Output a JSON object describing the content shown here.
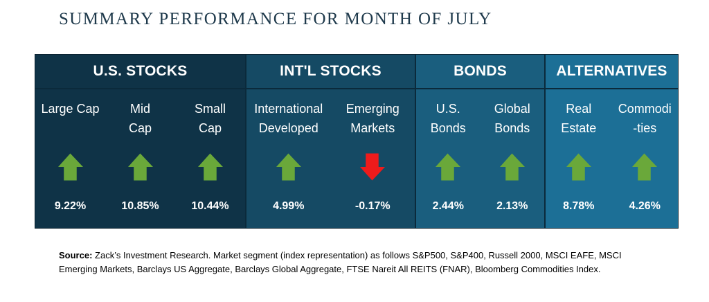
{
  "title": "SUMMARY PERFORMANCE FOR MONTH OF JULY",
  "colors": {
    "up_arrow": "#6aa83a",
    "down_arrow": "#ee1b1b"
  },
  "sections": [
    {
      "header": "U.S. STOCKS",
      "items": [
        {
          "label": "Large Cap",
          "value": "9.22%",
          "direction": "up",
          "icon": "up-arrow-icon"
        },
        {
          "label": "Mid\nCap",
          "value": "10.85%",
          "direction": "up",
          "icon": "up-arrow-icon"
        },
        {
          "label": "Small\nCap",
          "value": "10.44%",
          "direction": "up",
          "icon": "up-arrow-icon"
        }
      ]
    },
    {
      "header": "INT'L STOCKS",
      "items": [
        {
          "label": "International\nDeveloped",
          "value": "4.99%",
          "direction": "up",
          "icon": "up-arrow-icon"
        },
        {
          "label": "Emerging\nMarkets",
          "value": "-0.17%",
          "direction": "down",
          "icon": "down-arrow-icon"
        }
      ]
    },
    {
      "header": "BONDS",
      "items": [
        {
          "label": "U.S.\nBonds",
          "value": "2.44%",
          "direction": "up",
          "icon": "up-arrow-icon"
        },
        {
          "label": "Global\nBonds",
          "value": "2.13%",
          "direction": "up",
          "icon": "up-arrow-icon"
        }
      ]
    },
    {
      "header": "ALTERNATIVES",
      "items": [
        {
          "label": "Real\nEstate",
          "value": "8.78%",
          "direction": "up",
          "icon": "up-arrow-icon"
        },
        {
          "label": "Commodi\n-ties",
          "value": "4.26%",
          "direction": "up",
          "icon": "up-arrow-icon"
        }
      ]
    }
  ],
  "source": {
    "label": "Source:",
    "text": " Zack’s Investment Research. Market segment (index representation) as follows S&P500, S&P400, Russell 2000, MSCI EAFE, MSCI Emerging Markets, Barclays US Aggregate, Barclays Global Aggregate, FTSE Nareit All REITS (FNAR), Bloomberg Commodities Index."
  }
}
